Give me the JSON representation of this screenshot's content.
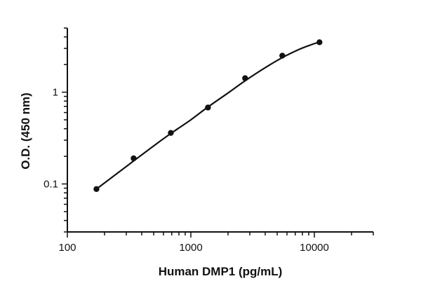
{
  "chart_data": {
    "type": "scatter",
    "xlabel": "Human DMP1 (pg/mL)",
    "ylabel": "O.D. (450 nm)",
    "x_scale": "log",
    "y_scale": "log",
    "xlim": [
      100,
      30000
    ],
    "ylim": [
      0.03,
      5
    ],
    "x_ticks": [
      {
        "value": 100,
        "label": "100"
      },
      {
        "value": 1000,
        "label": "1000"
      },
      {
        "value": 10000,
        "label": "10000"
      }
    ],
    "y_ticks": [
      {
        "value": 0.1,
        "label": "0.1"
      },
      {
        "value": 1,
        "label": "1"
      }
    ],
    "grid": false,
    "series": [
      {
        "points": [
          {
            "x": 172,
            "y": 0.088
          },
          {
            "x": 344,
            "y": 0.19
          },
          {
            "x": 688,
            "y": 0.36
          },
          {
            "x": 1375,
            "y": 0.68
          },
          {
            "x": 2750,
            "y": 1.42
          },
          {
            "x": 5500,
            "y": 2.5
          },
          {
            "x": 11000,
            "y": 3.5
          }
        ]
      }
    ],
    "fit_curve": [
      {
        "x": 172,
        "y": 0.088
      },
      {
        "x": 300,
        "y": 0.155
      },
      {
        "x": 500,
        "y": 0.26
      },
      {
        "x": 688,
        "y": 0.355
      },
      {
        "x": 1000,
        "y": 0.5
      },
      {
        "x": 1375,
        "y": 0.69
      },
      {
        "x": 2000,
        "y": 0.98
      },
      {
        "x": 2750,
        "y": 1.33
      },
      {
        "x": 4000,
        "y": 1.85
      },
      {
        "x": 5500,
        "y": 2.38
      },
      {
        "x": 7500,
        "y": 2.92
      },
      {
        "x": 9500,
        "y": 3.3
      },
      {
        "x": 11000,
        "y": 3.52
      }
    ],
    "colors": {
      "marker": "#111111",
      "line": "#111111",
      "axis": "#111111"
    }
  }
}
